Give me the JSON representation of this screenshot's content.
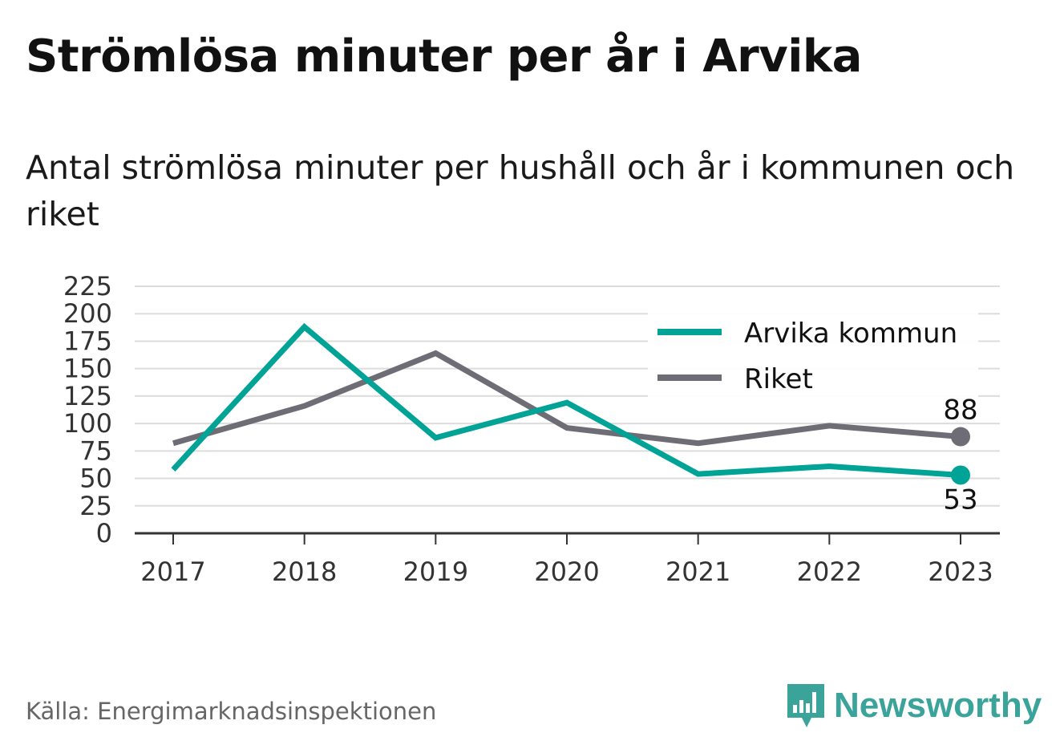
{
  "title": "Strömlösa minuter per år i Arvika",
  "subtitle": "Antal strömlösa minuter per hushåll och år i kommunen och riket",
  "source": "Källa: Energimarknadsinspektionen",
  "brand": "Newsworthy",
  "colors": {
    "arvika": "#00a396",
    "riket": "#6e6d75",
    "brand": "#3aa39a"
  },
  "chart_data": {
    "type": "line",
    "x": [
      "2017",
      "2018",
      "2019",
      "2020",
      "2021",
      "2022",
      "2023"
    ],
    "ylim": [
      0,
      225
    ],
    "yticks": [
      0,
      25,
      50,
      75,
      100,
      125,
      150,
      175,
      200,
      225
    ],
    "grid": true,
    "legend_position": "top-right",
    "series": [
      {
        "name": "Arvika kommun",
        "color": "#00a396",
        "values": [
          58,
          188,
          87,
          119,
          54,
          61,
          53
        ],
        "end_label": "53"
      },
      {
        "name": "Riket",
        "color": "#6e6d75",
        "values": [
          82,
          116,
          164,
          96,
          82,
          98,
          88
        ],
        "end_label": "88"
      }
    ]
  }
}
